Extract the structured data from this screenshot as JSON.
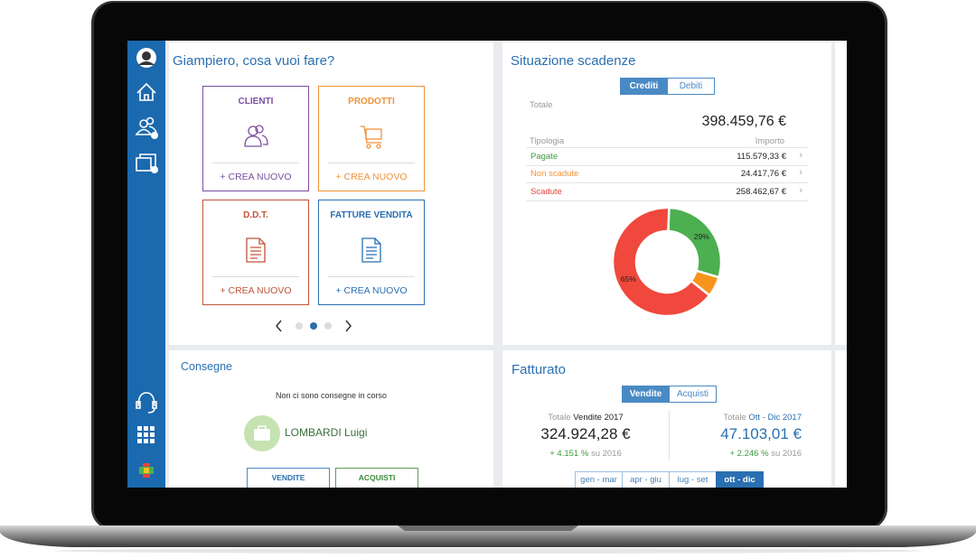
{
  "greeting": "Giampiero, cosa vuoi fare?",
  "tiles": [
    {
      "title": "CLIENTI",
      "action": "+ CREA NUOVO"
    },
    {
      "title": "PRODOTTI",
      "action": "+ CREA NUOVO"
    },
    {
      "title": "D.D.T.",
      "action": "+ CREA NUOVO"
    },
    {
      "title": "FATTURE VENDITA",
      "action": "+ CREA NUOVO"
    }
  ],
  "scadenze": {
    "title": "Situazione scadenze",
    "tabs": [
      "Crediti",
      "Debiti"
    ],
    "total_label": "Totale",
    "total": "398.459,76 €",
    "col_type": "Tipologia",
    "col_amount": "Importo",
    "rows": [
      [
        "Pagate",
        "115.579,33 €"
      ],
      [
        "Non scadute",
        "24.417,76 €"
      ],
      [
        "Scadute",
        "258.462,67 €"
      ]
    ]
  },
  "chart_data": {
    "type": "pie",
    "values": [
      29,
      6,
      65
    ],
    "value_labels": [
      "29%",
      null,
      "65%"
    ],
    "colors": [
      "#4caf50",
      "#f7941d",
      "#f0483c"
    ]
  },
  "consegne": {
    "title": "Consegne",
    "empty": "Non ci sono consegne in corso",
    "contact": "LOMBARDI Luigi",
    "buttons": [
      "VENDITE",
      "ACQUISTI"
    ]
  },
  "fatturato": {
    "title": "Fatturato",
    "tabs": [
      "Vendite",
      "Acquisti"
    ],
    "left": {
      "prefix": "Totale",
      "label": "Vendite 2017",
      "value": "324.924,28 €",
      "change": "+ 4.151 %",
      "suffix": "su 2016"
    },
    "right": {
      "prefix": "Totale",
      "label": "Ott - Dic 2017",
      "value": "47.103,01 €",
      "change": "+ 2.246 %",
      "suffix": "su 2016"
    },
    "periods": [
      "gen - mar",
      "apr - giu",
      "lug - set",
      "ott - dic"
    ]
  }
}
